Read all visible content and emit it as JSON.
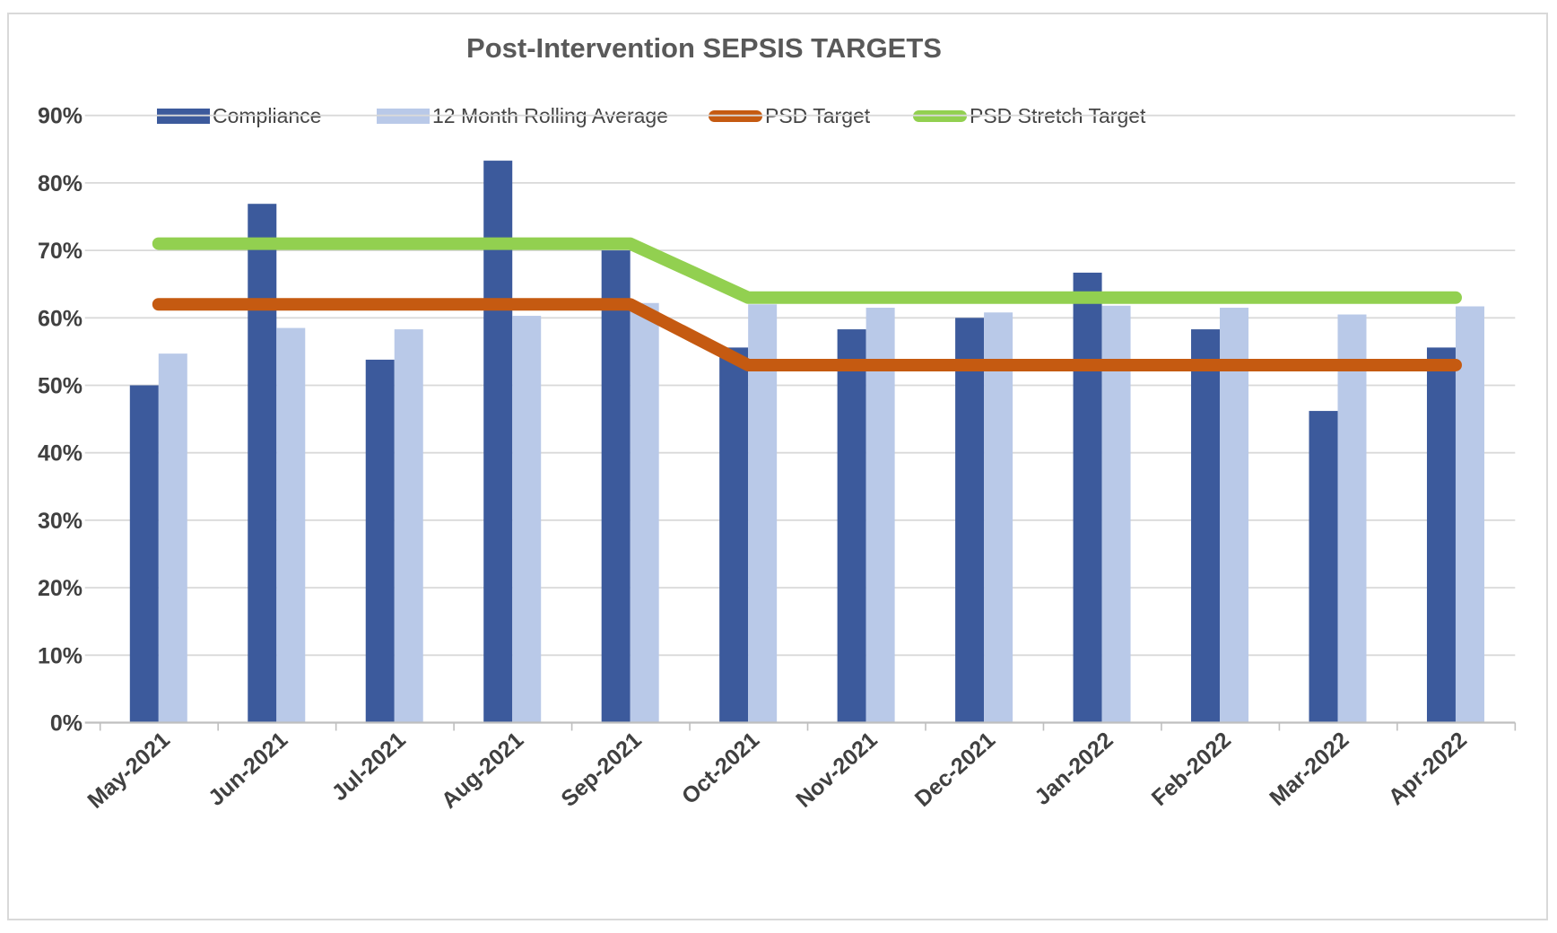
{
  "chart": {
    "title": "Post-Intervention SEPSIS TARGETS",
    "legend": [
      {
        "label": "Compliance",
        "type": "bar",
        "color": "#3C5A9C"
      },
      {
        "label": "12 Month Rolling Average",
        "type": "bar",
        "color": "#B9C9E8"
      },
      {
        "label": "PSD Target",
        "type": "line",
        "color": "#C55A11"
      },
      {
        "label": "PSD Stretch Target",
        "type": "line",
        "color": "#92D050"
      }
    ],
    "colors": {
      "compliance": "#3C5A9C",
      "rolling_average": "#B9C9E8",
      "psd_target": "#C55A11",
      "psd_stretch_target": "#92D050",
      "gridline": "#D9D9D9",
      "axis_line": "#BFBFBF",
      "title_text": "#595959",
      "axis_text": "#404040"
    }
  },
  "chart_data": {
    "type": "bar",
    "title": "Post-Intervention SEPSIS TARGETS",
    "categories": [
      "May-2021",
      "Jun-2021",
      "Jul-2021",
      "Aug-2021",
      "Sep-2021",
      "Oct-2021",
      "Nov-2021",
      "Dec-2021",
      "Jan-2022",
      "Feb-2022",
      "Mar-2022",
      "Apr-2022"
    ],
    "series": [
      {
        "name": "Compliance",
        "type": "bar",
        "color": "#3C5A9C",
        "values": [
          50.0,
          76.9,
          53.8,
          83.3,
          70.0,
          55.6,
          58.3,
          60.0,
          66.7,
          58.3,
          46.2,
          55.6
        ]
      },
      {
        "name": "12 Month Rolling Average",
        "type": "bar",
        "color": "#B9C9E8",
        "values": [
          54.7,
          58.5,
          58.3,
          60.3,
          62.2,
          62.0,
          61.5,
          60.8,
          61.8,
          61.5,
          60.5,
          61.7
        ]
      },
      {
        "name": "PSD Target",
        "type": "line",
        "color": "#C55A11",
        "values": [
          62,
          62,
          62,
          62,
          62,
          53,
          53,
          53,
          53,
          53,
          53,
          53
        ]
      },
      {
        "name": "PSD Stretch Target",
        "type": "line",
        "color": "#92D050",
        "values": [
          71,
          71,
          71,
          71,
          71,
          63,
          63,
          63,
          63,
          63,
          63,
          63
        ]
      }
    ],
    "ylabel": "",
    "xlabel": "",
    "ylim": [
      0,
      90
    ],
    "ytick_step": 10,
    "ytick_labels": [
      "0%",
      "10%",
      "20%",
      "30%",
      "40%",
      "50%",
      "60%",
      "70%",
      "80%",
      "90%"
    ],
    "grid": true,
    "legend_position": "top"
  }
}
